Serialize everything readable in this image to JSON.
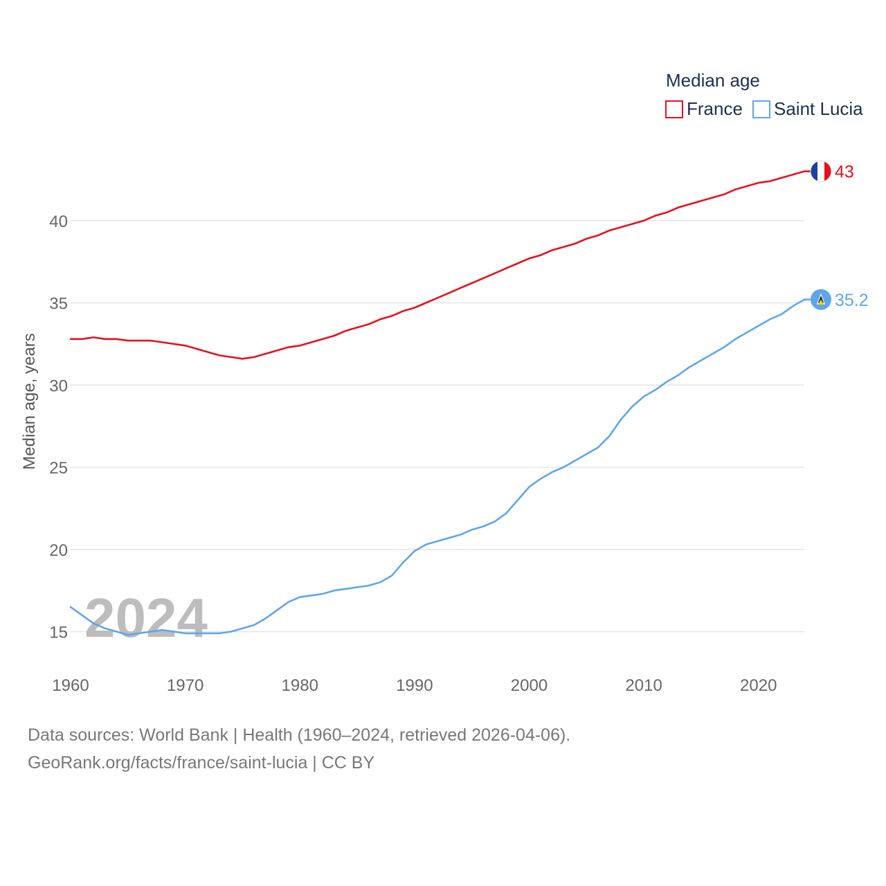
{
  "legend": {
    "title": "Median age",
    "entries": [
      {
        "label": "France",
        "color": "#e3121d"
      },
      {
        "label": "Saint Lucia",
        "color": "#5fa6e6"
      }
    ]
  },
  "watermark_year": "2024",
  "chart_data": {
    "type": "line",
    "title": "Median age",
    "ylabel": "Median age, years",
    "xlabel": "",
    "xlim": [
      1960,
      2024
    ],
    "ylim": [
      13,
      45
    ],
    "x_ticks": [
      1960,
      1970,
      1980,
      1990,
      2000,
      2010,
      2020
    ],
    "y_ticks": [
      15,
      20,
      25,
      30,
      35,
      40
    ],
    "x": [
      1960,
      1961,
      1962,
      1963,
      1964,
      1965,
      1966,
      1967,
      1968,
      1969,
      1970,
      1971,
      1972,
      1973,
      1974,
      1975,
      1976,
      1977,
      1978,
      1979,
      1980,
      1981,
      1982,
      1983,
      1984,
      1985,
      1986,
      1987,
      1988,
      1989,
      1990,
      1991,
      1992,
      1993,
      1994,
      1995,
      1996,
      1997,
      1998,
      1999,
      2000,
      2001,
      2002,
      2003,
      2004,
      2005,
      2006,
      2007,
      2008,
      2009,
      2010,
      2011,
      2012,
      2013,
      2014,
      2015,
      2016,
      2017,
      2018,
      2019,
      2020,
      2021,
      2022,
      2023,
      2024
    ],
    "series": [
      {
        "name": "France",
        "color": "#e3121d",
        "end_label": "43",
        "flag": "france-flag",
        "values": [
          32.8,
          32.8,
          32.9,
          32.8,
          32.8,
          32.7,
          32.7,
          32.7,
          32.6,
          32.5,
          32.4,
          32.2,
          32.0,
          31.8,
          31.7,
          31.6,
          31.7,
          31.9,
          32.1,
          32.3,
          32.4,
          32.6,
          32.8,
          33.0,
          33.3,
          33.5,
          33.7,
          34.0,
          34.2,
          34.5,
          34.7,
          35.0,
          35.3,
          35.6,
          35.9,
          36.2,
          36.5,
          36.8,
          37.1,
          37.4,
          37.7,
          37.9,
          38.2,
          38.4,
          38.6,
          38.9,
          39.1,
          39.4,
          39.6,
          39.8,
          40.0,
          40.3,
          40.5,
          40.8,
          41.0,
          41.2,
          41.4,
          41.6,
          41.9,
          42.1,
          42.3,
          42.4,
          42.6,
          42.8,
          43.0
        ]
      },
      {
        "name": "Saint Lucia",
        "color": "#5fa6e6",
        "end_label": "35.2",
        "flag": "saint-lucia-flag",
        "values": [
          16.5,
          16.0,
          15.5,
          15.2,
          15.0,
          14.8,
          14.9,
          15.0,
          15.1,
          15.0,
          14.9,
          14.9,
          14.9,
          14.9,
          15.0,
          15.2,
          15.4,
          15.8,
          16.3,
          16.8,
          17.1,
          17.2,
          17.3,
          17.5,
          17.6,
          17.7,
          17.8,
          18.0,
          18.4,
          19.2,
          19.9,
          20.3,
          20.5,
          20.7,
          20.9,
          21.2,
          21.4,
          21.7,
          22.2,
          23.0,
          23.8,
          24.3,
          24.7,
          25.0,
          25.4,
          25.8,
          26.2,
          26.9,
          27.9,
          28.7,
          29.3,
          29.7,
          30.2,
          30.6,
          31.1,
          31.5,
          31.9,
          32.3,
          32.8,
          33.2,
          33.6,
          34.0,
          34.3,
          34.8,
          35.2
        ]
      }
    ]
  },
  "source": {
    "line1": "Data sources: World Bank | Health (1960–2024, retrieved 2026-04-06).",
    "line2": "GeoRank.org/facts/france/saint-lucia | CC BY"
  }
}
